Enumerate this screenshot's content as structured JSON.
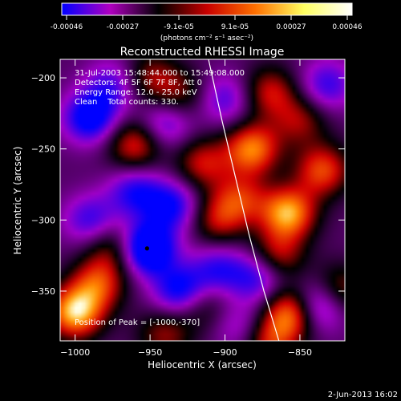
{
  "chart_data": {
    "type": "heatmap",
    "title": "Reconstructed RHESSI Image",
    "xlabel": "Heliocentric X (arcsec)",
    "ylabel": "Heliocentric Y (arcsec)",
    "xlim": [
      -1010,
      -820
    ],
    "ylim": [
      -385,
      -187
    ],
    "xticks": [
      -1000,
      -950,
      -900,
      -850
    ],
    "yticks": [
      -200,
      -250,
      -300,
      -350
    ],
    "colorbar": {
      "ticks": [
        "-0.00046",
        "-0.00027",
        "-9.1e-05",
        "9.1e-05",
        "0.00027",
        "0.00046"
      ],
      "unit": "(photons cm⁻² s⁻¹ asec⁻²)",
      "colors": [
        "#0000ff",
        "#b000c0",
        "#000000",
        "#c80000",
        "#ff7000",
        "#ffff60",
        "#ffffff"
      ]
    },
    "annotations": [
      "31-Jul-2003 15:48:44.000 to 15:49:08.000",
      "Detectors: 4F 5F 6F 7F 8F, Att 0",
      "Energy Range: 12.0 - 25.0 keV",
      "Clean    Total counts: 330."
    ],
    "peak_label": "Position of Peak = [-1000,-370]",
    "peak_marker": {
      "x": -952,
      "y": -320
    },
    "limb": [
      {
        "x": -911,
        "y": -187
      },
      {
        "x": -902,
        "y": -230
      },
      {
        "x": -893,
        "y": -270
      },
      {
        "x": -884,
        "y": -310
      },
      {
        "x": -874,
        "y": -350
      },
      {
        "x": -864,
        "y": -385
      }
    ],
    "blobs": [
      {
        "x": -1000,
        "y": -365,
        "v": 1.0
      },
      {
        "x": -985,
        "y": -345,
        "v": 0.65
      },
      {
        "x": -975,
        "y": -320,
        "v": 0.45
      },
      {
        "x": -960,
        "y": -247,
        "v": 0.65
      },
      {
        "x": -950,
        "y": -200,
        "v": 0.45
      },
      {
        "x": -930,
        "y": -212,
        "v": 0.4
      },
      {
        "x": -915,
        "y": -260,
        "v": 0.55
      },
      {
        "x": -905,
        "y": -300,
        "v": 0.5
      },
      {
        "x": -890,
        "y": -285,
        "v": 0.55
      },
      {
        "x": -882,
        "y": -250,
        "v": 0.85
      },
      {
        "x": -870,
        "y": -210,
        "v": 0.55
      },
      {
        "x": -850,
        "y": -230,
        "v": 0.45
      },
      {
        "x": -858,
        "y": -295,
        "v": 0.95
      },
      {
        "x": -835,
        "y": -265,
        "v": 0.7
      },
      {
        "x": -865,
        "y": -325,
        "v": 0.55
      },
      {
        "x": -855,
        "y": -365,
        "v": 0.9
      },
      {
        "x": -870,
        "y": -385,
        "v": 0.6
      },
      {
        "x": -825,
        "y": -350,
        "v": 0.55
      },
      {
        "x": -940,
        "y": -380,
        "v": 0.45
      },
      {
        "x": -915,
        "y": -360,
        "v": 0.35
      },
      {
        "x": -952,
        "y": -320,
        "v": -1.0
      },
      {
        "x": -990,
        "y": -228,
        "v": -0.75
      },
      {
        "x": -930,
        "y": -350,
        "v": -0.7
      },
      {
        "x": -960,
        "y": -280,
        "v": -0.55
      },
      {
        "x": -990,
        "y": -300,
        "v": -0.5
      },
      {
        "x": -935,
        "y": -290,
        "v": -0.6
      },
      {
        "x": -940,
        "y": -232,
        "v": -0.5
      },
      {
        "x": -975,
        "y": -205,
        "v": -0.45
      },
      {
        "x": -905,
        "y": -335,
        "v": -0.5
      },
      {
        "x": -878,
        "y": -340,
        "v": -0.55
      },
      {
        "x": -838,
        "y": -360,
        "v": -0.8
      },
      {
        "x": -832,
        "y": -205,
        "v": -0.5
      },
      {
        "x": -900,
        "y": -215,
        "v": -0.45
      },
      {
        "x": -890,
        "y": -375,
        "v": -0.35
      }
    ]
  },
  "timestamp": "2-Jun-2013 16:02"
}
